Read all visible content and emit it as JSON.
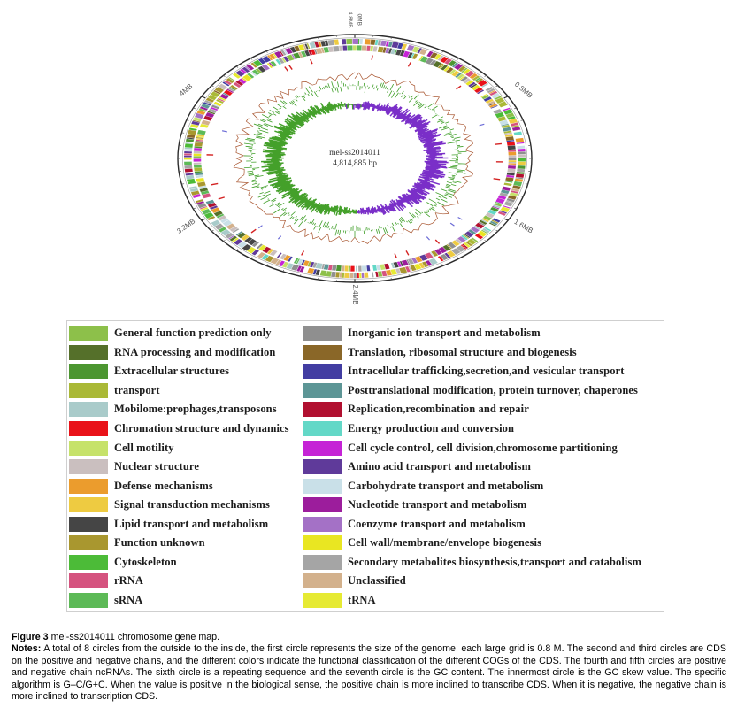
{
  "chart_data": {
    "type": "circular-genome-map",
    "title": "mel-ss2014011 chromosome gene map",
    "center_label_line1": "mel-ss2014011",
    "center_label_line2": "4,814,885 bp",
    "genome_size_bp": 4814885,
    "grid_interval": "0.8 M",
    "scale_labels": [
      {
        "text": "4.8MB",
        "angle": -1.3,
        "s": 1.12,
        "rotation": 90,
        "size": 6.5
      },
      {
        "text": "0MB",
        "angle": 1.3,
        "s": 1.12,
        "rotation": 90,
        "size": 6.5
      },
      {
        "text": "0.8MB",
        "angle": 60,
        "s": 1.1,
        "rotation": 40,
        "size": 8
      },
      {
        "text": "1.6MB",
        "angle": 120,
        "s": 1.1,
        "rotation": 30,
        "size": 8
      },
      {
        "text": "2.4MB",
        "angle": 180,
        "s": 1.1,
        "rotation": 90,
        "size": 8
      },
      {
        "text": "3.2MB",
        "angle": 240,
        "s": 1.1,
        "rotation": -35,
        "size": 8
      },
      {
        "text": "4MB",
        "angle": 300,
        "s": 1.1,
        "rotation": -40,
        "size": 8
      }
    ],
    "rings_outside_to_inside": [
      "genome size scale (each large grid is 0.8 M)",
      "CDS on positive chain (colored by COG classification)",
      "CDS on negative chain (colored by COG classification)",
      "positive chain ncRNA",
      "negative chain ncRNA",
      "repeating sequence",
      "GC content",
      "GC skew value (G–C/G+C)"
    ],
    "ring_colors": {
      "outline": "#2b2b2b",
      "inner_guide": "#999999",
      "ncrna_tick": "#d42222",
      "ncrna_tick2": "#6b6bd6",
      "repeat_trace": "#a8552f",
      "gc_content": "#3f9e28",
      "gc_skew_positive": "#7a2fc8",
      "gc_skew_negative": "#44a02a",
      "center_text": "#333333",
      "scale_text": "#555555"
    }
  },
  "legend": {
    "left": [
      {
        "label": "General function prediction only",
        "color": "#8dc04a"
      },
      {
        "label": "RNA processing and modification",
        "color": "#55702a"
      },
      {
        "label": "Extracellular structures",
        "color": "#4c9631"
      },
      {
        "label": "transport",
        "color": "#aab937"
      },
      {
        "label": "Mobilome:prophages,transposons",
        "color": "#a9cbca"
      },
      {
        "label": "Chromation structure and dynamics",
        "color": "#e91219"
      },
      {
        "label": "Cell motility",
        "color": "#c6e26a"
      },
      {
        "label": "Nuclear structure",
        "color": "#cabfbf"
      },
      {
        "label": "Defense mechanisms",
        "color": "#eb9c2d"
      },
      {
        "label": "Signal transduction mechanisms",
        "color": "#eecb41"
      },
      {
        "label": "Lipid transport and metabolism",
        "color": "#454545"
      },
      {
        "label": "Function unknown",
        "color": "#a9972f"
      },
      {
        "label": "Cytoskeleton",
        "color": "#4cbb38"
      },
      {
        "label": "rRNA",
        "color": "#d5537f"
      },
      {
        "label": "sRNA",
        "color": "#5dba57"
      }
    ],
    "right": [
      {
        "label": "Inorganic ion transport and metabolism",
        "color": "#8f8f8f"
      },
      {
        "label": "Translation, ribosomal structure and biogenesis",
        "color": "#8a6728"
      },
      {
        "label": "Intracellular trafficking,secretion,and vesicular transport",
        "color": "#423da2"
      },
      {
        "label": "Posttranslational modification, protein turnover, chaperones",
        "color": "#5d9696"
      },
      {
        "label": "Replication,recombination and repair",
        "color": "#b11030"
      },
      {
        "label": "Energy production and conversion",
        "color": "#63d8c7"
      },
      {
        "label": "Cell cycle control, cell division,chromosome partitioning",
        "color": "#c523d6"
      },
      {
        "label": "Amino acid transport and metabolism",
        "color": "#5f3a9a"
      },
      {
        "label": "Carbohydrate transport and metabolism",
        "color": "#c9e0e8"
      },
      {
        "label": "Nucleotide transport and metabolism",
        "color": "#9c1d9c"
      },
      {
        "label": "Coenzyme transport and metabolism",
        "color": "#a471c6"
      },
      {
        "label": "Cell wall/membrane/envelope biogenesis",
        "color": "#e9e622"
      },
      {
        "label": "Secondary metabolites biosynthesis,transport and catabolism",
        "color": "#a5a5a5"
      },
      {
        "label": "Unclassified",
        "color": "#d3b18c"
      },
      {
        "label": "tRNA",
        "color": "#e6ea33"
      }
    ]
  },
  "caption": {
    "figure_label": "Figure 3",
    "figure_title": "mel-ss2014011 chromosome gene map.",
    "notes_label": "Notes:",
    "notes_text": "A total of 8 circles from the outside to the inside, the first circle represents the size of the genome; each large grid is 0.8 M. The second and third circles are CDS on the positive and negative chains, and the different colors indicate the functional classification of the different COGs of the CDS. The fourth and fifth circles are positive and negative chain ncRNAs. The sixth circle is a repeating sequence and the seventh circle is the GC content. The innermost circle is the GC skew value. The specific algorithm is G–C/G+C. When the value is positive in the biological sense, the positive chain is more inclined to transcribe CDS. When it is negative, the negative chain is more inclined to transcription CDS."
  }
}
